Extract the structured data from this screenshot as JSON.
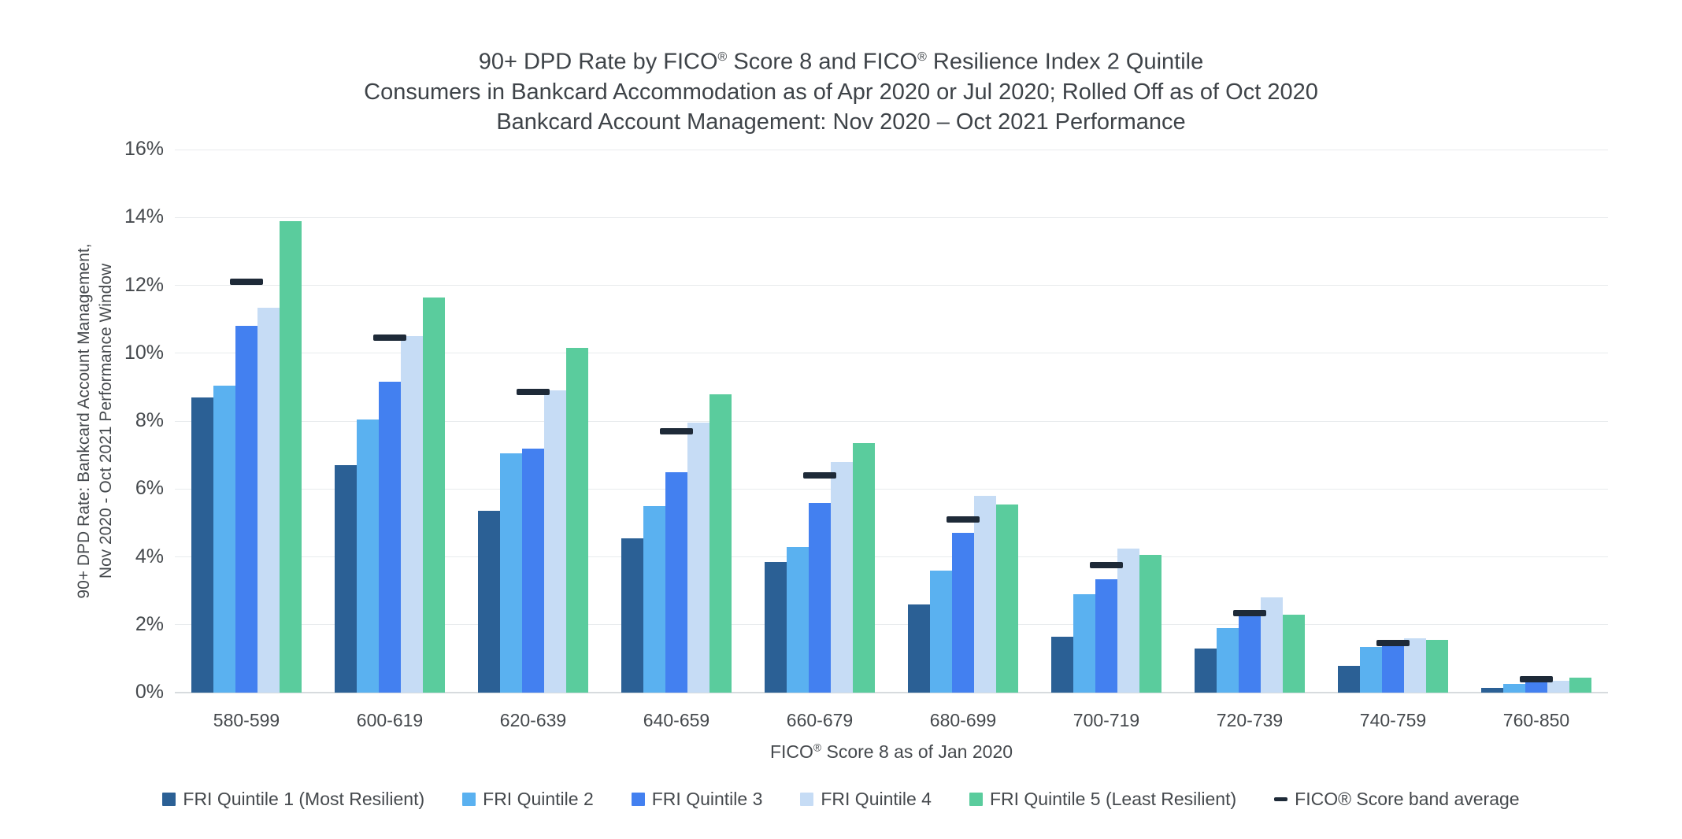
{
  "page": {
    "title_lines": [
      "90+ DPD Rate by FICO® Score 8 and FICO® Resilience Index 2 Quintile",
      "Consumers in Bankcard Accommodation as of Apr 2020 or Jul 2020; Rolled Off as of Oct 2020",
      "Bankcard Account Management: Nov 2020 – Oct 2021 Performance"
    ]
  },
  "chart_data": {
    "type": "bar",
    "title": "90+ DPD Rate by FICO® Score 8 and FICO® Resilience Index 2 Quintile",
    "subtitle_lines": [
      "Consumers in Bankcard Accommodation as of Apr 2020 or Jul 2020; Rolled Off as of Oct 2020",
      "Bankcard Account Management: Nov 2020 – Oct 2021 Performance"
    ],
    "categories": [
      "580-599",
      "600-619",
      "620-639",
      "640-659",
      "660-679",
      "680-699",
      "700-719",
      "720-739",
      "740-759",
      "760-850"
    ],
    "series": [
      {
        "name": "FRI Quintile 1 (Most Resilient)",
        "color": "#2b6095",
        "values": [
          8.7,
          6.7,
          5.35,
          4.55,
          3.85,
          2.6,
          1.65,
          1.3,
          0.8,
          0.15
        ]
      },
      {
        "name": "FRI Quintile 2",
        "color": "#5ab1f0",
        "values": [
          9.05,
          8.05,
          7.05,
          5.5,
          4.3,
          3.6,
          2.9,
          1.9,
          1.35,
          0.25
        ]
      },
      {
        "name": "FRI Quintile 3",
        "color": "#4380f0",
        "values": [
          10.8,
          9.15,
          7.2,
          6.5,
          5.6,
          4.7,
          3.35,
          2.35,
          1.4,
          0.3
        ]
      },
      {
        "name": "FRI Quintile 4",
        "color": "#c6dcf5",
        "values": [
          11.35,
          10.5,
          8.9,
          7.95,
          6.8,
          5.8,
          4.25,
          2.8,
          1.6,
          0.35
        ]
      },
      {
        "name": "FRI Quintile 5 (Least Resilient)",
        "color": "#5acc9d",
        "values": [
          13.9,
          11.65,
          10.15,
          8.8,
          7.35,
          5.55,
          4.05,
          2.3,
          1.55,
          0.45
        ]
      }
    ],
    "band_average": {
      "name": "FICO® Score band average",
      "color": "#1e2a38",
      "marker": "dash",
      "values": [
        12.1,
        10.45,
        8.85,
        7.7,
        6.4,
        5.1,
        3.75,
        2.35,
        1.45,
        0.4
      ]
    },
    "xlabel": "FICO® Score 8 as of Jan 2020",
    "ylabel_lines": [
      "90+ DPD Rate: Bankcard Account Management,",
      "Nov 2020 - Oct 2021 Performance Window"
    ],
    "y_ticks": [
      "0%",
      "2%",
      "4%",
      "6%",
      "8%",
      "10%",
      "12%",
      "14%",
      "16%"
    ],
    "ylim": [
      0,
      16
    ],
    "y_tick_step": 2,
    "grid": true,
    "legend_position": "bottom"
  }
}
